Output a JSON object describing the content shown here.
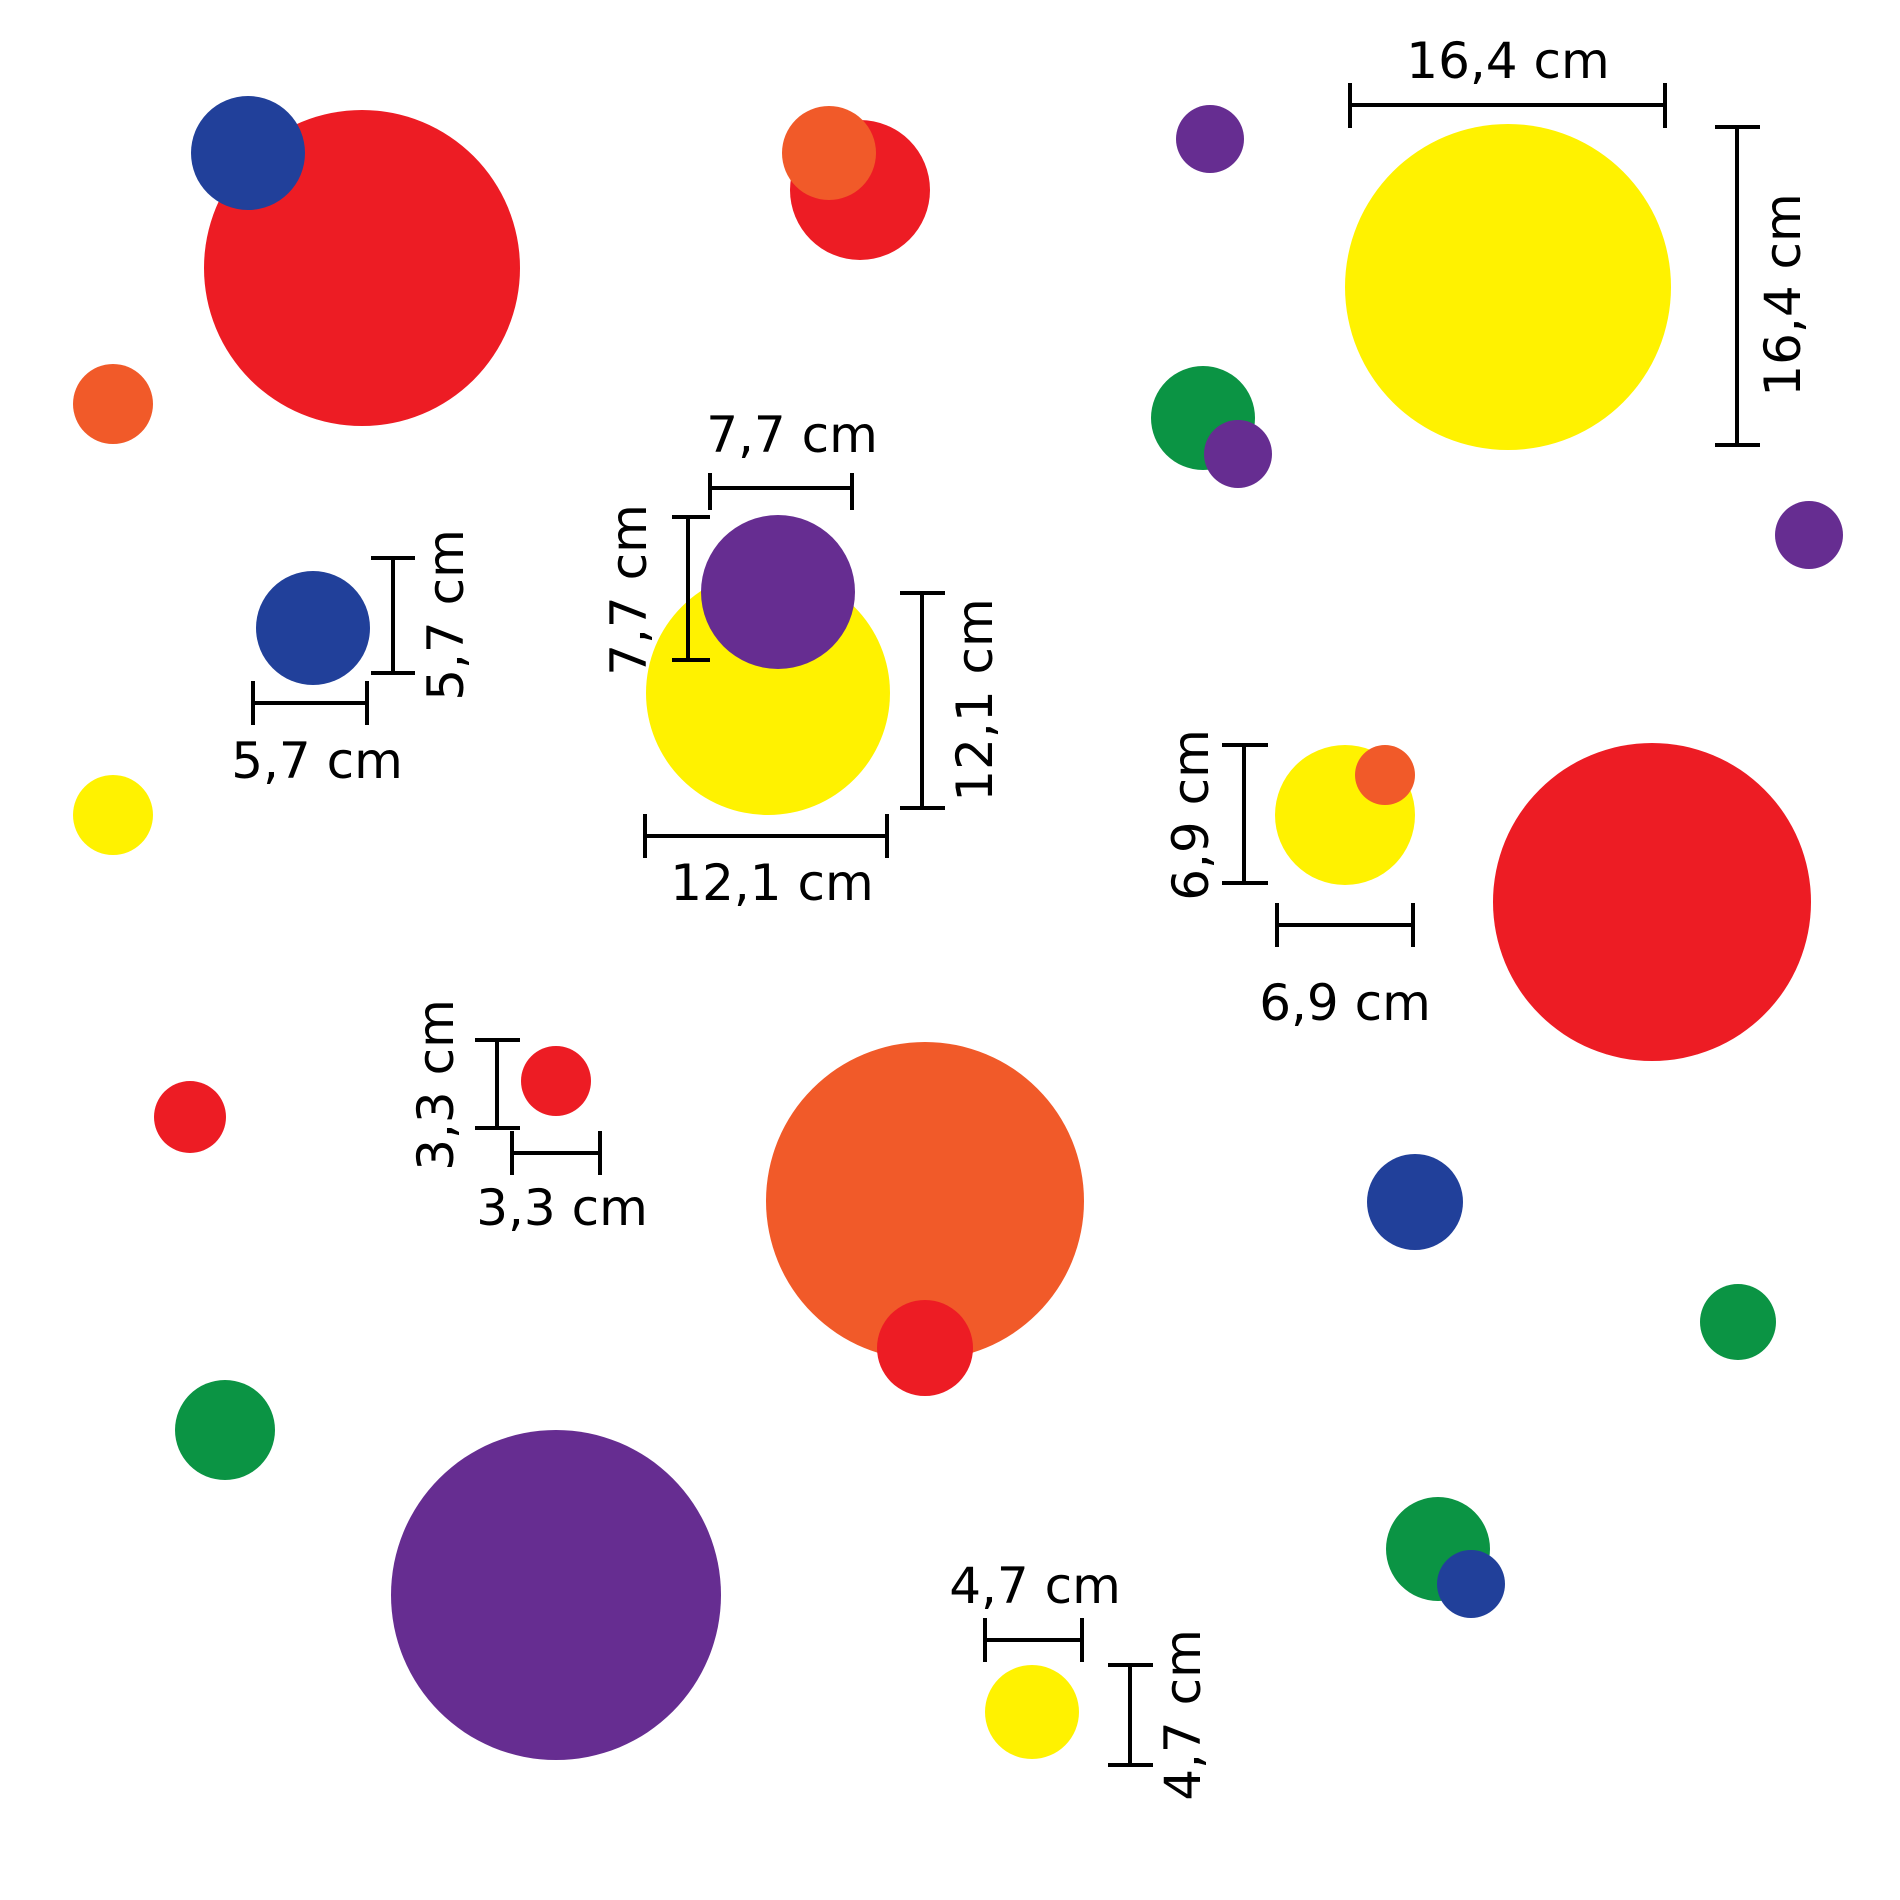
{
  "colors": {
    "red": "#ED1C24",
    "blue": "#21409A",
    "orange": "#F15A29",
    "yellow": "#FFF200",
    "purple": "#662D91",
    "green": "#0B9444",
    "ink": "#000000",
    "background": "#FFFFFF"
  },
  "dots": [
    {
      "color": "red"
    },
    {
      "color": "blue"
    },
    {
      "color": "red"
    },
    {
      "color": "orange"
    },
    {
      "color": "purple"
    },
    {
      "color": "yellow"
    },
    {
      "color": "green"
    },
    {
      "color": "purple"
    },
    {
      "color": "purple"
    },
    {
      "color": "orange"
    },
    {
      "color": "blue"
    },
    {
      "color": "yellow"
    },
    {
      "color": "purple"
    },
    {
      "color": "yellow"
    },
    {
      "color": "orange"
    },
    {
      "color": "red"
    },
    {
      "color": "red"
    },
    {
      "color": "red"
    },
    {
      "color": "orange"
    },
    {
      "color": "red"
    },
    {
      "color": "blue"
    },
    {
      "color": "green"
    },
    {
      "color": "green"
    },
    {
      "color": "purple"
    },
    {
      "color": "green"
    },
    {
      "color": "blue"
    },
    {
      "color": "yellow"
    },
    {
      "color": "yellow"
    }
  ],
  "dimensions": {
    "d164": "16,4 cm",
    "d121": "12,1 cm",
    "d77": "7,7 cm",
    "d69": "6,9 cm",
    "d57": "5,7 cm",
    "d47": "4,7 cm",
    "d33": "3,3 cm"
  }
}
